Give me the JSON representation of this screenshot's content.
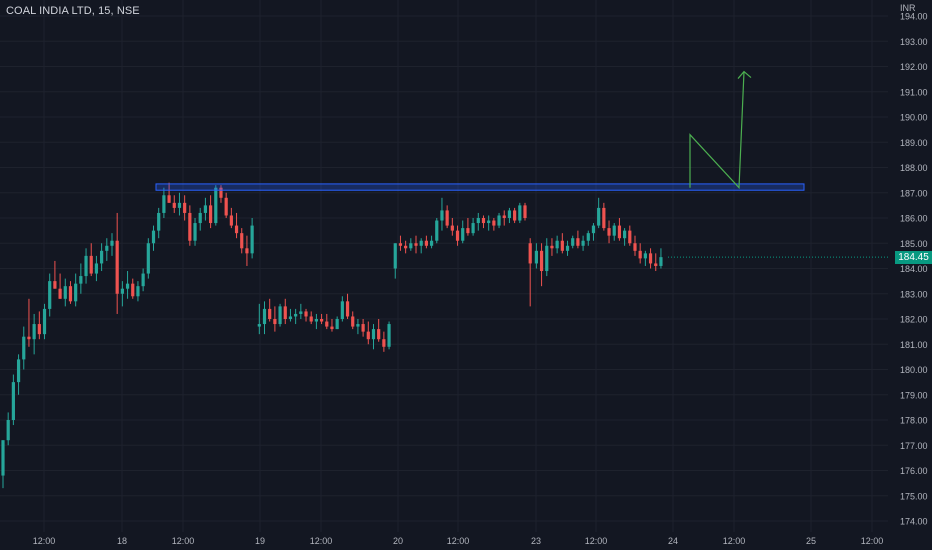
{
  "header": {
    "symbol_title": "COAL INDIA LTD, 15, NSE"
  },
  "price_axis": {
    "unit": "INR"
  },
  "last_price": {
    "label": "184.45",
    "value": 184.45
  },
  "colors": {
    "background": "#131722",
    "up": "#26a69a",
    "down": "#ef5350",
    "grid": "#1e222d",
    "text": "#b2b5be",
    "resistance_zone": "#2962ff",
    "arrow": "#4caf50",
    "price_tag": "#089981"
  },
  "chart_data": {
    "type": "candlestick",
    "title": "COAL INDIA LTD, 15, NSE",
    "ylim": [
      173.8,
      194.4
    ],
    "y_ticks": [
      174,
      175,
      176,
      177,
      178,
      179,
      180,
      181,
      182,
      183,
      184,
      185,
      186,
      187,
      188,
      189,
      190,
      191,
      192,
      193,
      194
    ],
    "y_tick_labels": [
      "174.00",
      "175.00",
      "176.00",
      "177.00",
      "178.00",
      "179.00",
      "180.00",
      "181.00",
      "182.00",
      "183.00",
      "184.00",
      "185.00",
      "186.00",
      "187.00",
      "188.00",
      "189.00",
      "190.00",
      "191.00",
      "192.00",
      "193.00",
      "194.00"
    ],
    "x_ticks": [
      "12:00",
      "18",
      "12:00",
      "19",
      "12:00",
      "20",
      "12:00",
      "23",
      "12:00",
      "24",
      "12:00",
      "25",
      "12:00"
    ],
    "candles": [
      [
        175.8,
        177.2,
        175.3,
        177.2
      ],
      [
        177.2,
        178.3,
        177.0,
        178.0
      ],
      [
        178.0,
        179.8,
        177.8,
        179.5
      ],
      [
        179.5,
        180.6,
        179.0,
        180.4
      ],
      [
        180.4,
        181.7,
        180.0,
        181.3
      ],
      [
        181.3,
        182.8,
        180.9,
        181.2
      ],
      [
        181.2,
        182.2,
        180.6,
        181.8
      ],
      [
        181.8,
        182.3,
        181.2,
        181.4
      ],
      [
        181.4,
        182.6,
        181.2,
        182.4
      ],
      [
        182.4,
        183.8,
        182.1,
        183.5
      ],
      [
        183.5,
        184.3,
        183.2,
        183.2
      ],
      [
        183.2,
        183.8,
        182.8,
        182.8
      ],
      [
        182.8,
        183.6,
        182.5,
        183.3
      ],
      [
        183.3,
        183.5,
        182.6,
        182.7
      ],
      [
        182.7,
        183.8,
        182.5,
        183.4
      ],
      [
        183.4,
        184.2,
        183.0,
        183.7
      ],
      [
        183.7,
        184.8,
        183.4,
        184.5
      ],
      [
        184.5,
        185.0,
        183.7,
        183.8
      ],
      [
        183.8,
        184.5,
        183.5,
        184.2
      ],
      [
        184.2,
        185.0,
        183.9,
        184.7
      ],
      [
        184.7,
        185.2,
        184.3,
        184.9
      ],
      [
        184.9,
        185.4,
        184.5,
        185.1
      ],
      [
        185.1,
        186.2,
        182.2,
        183.0
      ],
      [
        183.0,
        183.5,
        182.5,
        183.2
      ],
      [
        183.2,
        183.9,
        182.8,
        183.4
      ],
      [
        183.4,
        183.6,
        182.8,
        182.9
      ],
      [
        182.9,
        183.5,
        182.7,
        183.3
      ],
      [
        183.3,
        184.0,
        183.1,
        183.8
      ],
      [
        183.8,
        185.2,
        183.6,
        185.0
      ],
      [
        185.0,
        185.7,
        184.7,
        185.5
      ],
      [
        185.5,
        186.4,
        185.2,
        186.2
      ],
      [
        186.2,
        187.2,
        186.0,
        186.9
      ],
      [
        186.9,
        187.4,
        186.6,
        186.6
      ],
      [
        186.6,
        186.9,
        186.2,
        186.4
      ],
      [
        186.4,
        187.0,
        186.1,
        186.6
      ],
      [
        186.6,
        186.9,
        185.9,
        186.2
      ],
      [
        186.2,
        186.5,
        184.9,
        185.1
      ],
      [
        185.1,
        186.0,
        184.9,
        185.8
      ],
      [
        185.8,
        186.4,
        185.5,
        186.2
      ],
      [
        186.2,
        186.8,
        185.9,
        186.5
      ],
      [
        186.5,
        186.9,
        185.6,
        185.8
      ],
      [
        185.8,
        187.3,
        185.7,
        187.2
      ],
      [
        187.2,
        187.3,
        186.6,
        186.8
      ],
      [
        186.8,
        187.0,
        186.0,
        186.1
      ],
      [
        186.1,
        186.4,
        185.6,
        185.7
      ],
      [
        185.7,
        186.2,
        185.2,
        185.4
      ],
      [
        185.4,
        185.6,
        184.6,
        184.8
      ],
      [
        184.8,
        185.3,
        184.1,
        184.6
      ],
      [
        184.6,
        186.0,
        184.4,
        185.7
      ],
      [
        181.7,
        182.6,
        181.4,
        181.8
      ],
      [
        181.8,
        182.7,
        181.4,
        182.4
      ],
      [
        182.4,
        182.8,
        181.9,
        182.0
      ],
      [
        182.0,
        182.5,
        181.5,
        181.8
      ],
      [
        181.8,
        182.6,
        181.7,
        182.5
      ],
      [
        182.5,
        182.8,
        181.8,
        182.0
      ],
      [
        182.0,
        182.4,
        181.9,
        182.1
      ],
      [
        182.1,
        182.4,
        181.8,
        182.2
      ],
      [
        182.2,
        182.6,
        182.0,
        182.3
      ],
      [
        182.3,
        182.4,
        181.9,
        182.1
      ],
      [
        182.1,
        182.3,
        181.8,
        181.9
      ],
      [
        181.9,
        182.2,
        181.6,
        182.0
      ],
      [
        182.0,
        182.2,
        181.8,
        181.9
      ],
      [
        181.9,
        182.2,
        181.6,
        181.7
      ],
      [
        181.7,
        182.0,
        181.5,
        181.6
      ],
      [
        181.6,
        182.1,
        181.6,
        182.0
      ],
      [
        182.0,
        182.9,
        181.9,
        182.7
      ],
      [
        182.7,
        183.0,
        182.0,
        182.1
      ],
      [
        182.1,
        182.3,
        181.6,
        181.7
      ],
      [
        181.7,
        182.0,
        181.4,
        181.8
      ],
      [
        181.8,
        182.0,
        181.3,
        181.5
      ],
      [
        181.5,
        181.9,
        181.0,
        181.2
      ],
      [
        181.2,
        181.8,
        180.8,
        181.6
      ],
      [
        181.6,
        182.0,
        181.1,
        181.2
      ],
      [
        181.2,
        181.5,
        180.7,
        180.9
      ],
      [
        180.9,
        181.9,
        180.8,
        181.8
      ],
      [
        184.0,
        185.0,
        183.6,
        185.0
      ],
      [
        185.0,
        185.3,
        184.7,
        184.9
      ],
      [
        184.9,
        185.1,
        184.6,
        184.8
      ],
      [
        184.8,
        185.2,
        184.7,
        185.0
      ],
      [
        185.0,
        185.3,
        184.6,
        184.9
      ],
      [
        184.9,
        185.2,
        184.6,
        185.1
      ],
      [
        185.1,
        185.3,
        184.8,
        184.9
      ],
      [
        184.9,
        185.3,
        184.8,
        185.1
      ],
      [
        185.1,
        186.0,
        185.0,
        185.9
      ],
      [
        185.9,
        186.8,
        185.5,
        186.3
      ],
      [
        186.3,
        186.5,
        185.6,
        185.7
      ],
      [
        185.7,
        186.0,
        185.3,
        185.5
      ],
      [
        185.5,
        185.7,
        184.9,
        185.1
      ],
      [
        185.1,
        185.9,
        185.0,
        185.6
      ],
      [
        185.6,
        186.0,
        185.3,
        185.4
      ],
      [
        185.4,
        186.0,
        185.3,
        185.8
      ],
      [
        185.8,
        186.2,
        185.5,
        186.0
      ],
      [
        186.0,
        186.1,
        185.6,
        185.8
      ],
      [
        185.8,
        186.1,
        185.5,
        185.9
      ],
      [
        185.9,
        186.0,
        185.5,
        185.7
      ],
      [
        185.7,
        186.2,
        185.6,
        186.1
      ],
      [
        186.1,
        186.3,
        185.7,
        186.0
      ],
      [
        186.0,
        186.4,
        185.8,
        186.3
      ],
      [
        186.3,
        186.4,
        185.8,
        185.9
      ],
      [
        185.9,
        186.6,
        185.8,
        186.5
      ],
      [
        186.5,
        186.6,
        185.9,
        186.0
      ],
      [
        185.0,
        185.2,
        182.5,
        184.2
      ],
      [
        184.2,
        185.0,
        184.0,
        184.7
      ],
      [
        184.7,
        185.0,
        183.3,
        183.9
      ],
      [
        183.9,
        185.2,
        183.7,
        184.9
      ],
      [
        184.9,
        185.2,
        184.5,
        184.8
      ],
      [
        184.8,
        185.3,
        184.6,
        185.1
      ],
      [
        185.1,
        185.4,
        184.6,
        184.7
      ],
      [
        184.7,
        185.1,
        184.5,
        184.9
      ],
      [
        184.9,
        185.3,
        184.8,
        185.2
      ],
      [
        185.2,
        185.5,
        184.8,
        184.9
      ],
      [
        184.9,
        185.3,
        184.7,
        185.1
      ],
      [
        185.1,
        185.5,
        184.9,
        185.4
      ],
      [
        185.4,
        185.8,
        185.1,
        185.7
      ],
      [
        185.7,
        186.8,
        185.6,
        186.4
      ],
      [
        186.4,
        186.6,
        185.5,
        185.6
      ],
      [
        185.6,
        185.9,
        185.0,
        185.3
      ],
      [
        185.3,
        185.8,
        185.1,
        185.7
      ],
      [
        185.7,
        186.0,
        185.1,
        185.2
      ],
      [
        185.2,
        185.6,
        184.9,
        185.5
      ],
      [
        185.5,
        185.7,
        184.9,
        185.0
      ],
      [
        185.0,
        185.3,
        184.5,
        184.7
      ],
      [
        184.7,
        185.0,
        184.2,
        184.4
      ],
      [
        184.4,
        184.7,
        184.1,
        184.6
      ],
      [
        184.6,
        184.8,
        184.0,
        184.2
      ],
      [
        184.2,
        184.6,
        183.9,
        184.1
      ],
      [
        184.1,
        184.8,
        184.0,
        184.45
      ]
    ],
    "resistance_zone": {
      "low": 187.1,
      "high": 187.35
    },
    "projection_arrow": {
      "points": [
        [
          189.3
        ],
        [
          187.2
        ],
        [
          191.8
        ]
      ]
    }
  }
}
